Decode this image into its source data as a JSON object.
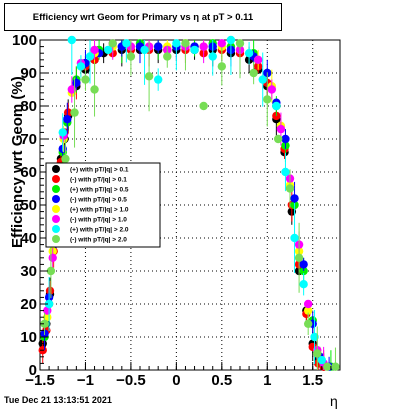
{
  "chart_data": {
    "type": "scatter",
    "title": "Efficiency wrt Geom for Primary vs   η at pT > 0.11",
    "xlabel": "η",
    "ylabel": "Efficiency wrt Geom (%)",
    "xlim": [
      -1.5,
      1.8
    ],
    "ylim": [
      0,
      100
    ],
    "x_ticks": [
      -1.5,
      -1,
      -0.5,
      0,
      0.5,
      1,
      1.5
    ],
    "x_tick_labels": [
      "−1.5",
      "−1",
      "−0.5",
      "0",
      "0.5",
      "1",
      "1.5"
    ],
    "y_ticks": [
      0,
      10,
      20,
      30,
      40,
      50,
      60,
      70,
      80,
      90,
      100
    ],
    "y_tick_labels": [
      "0",
      "10",
      "20",
      "30",
      "40",
      "50",
      "60",
      "70",
      "80",
      "90",
      "100"
    ],
    "grid": true,
    "legend_position": "middle-left",
    "series": [
      {
        "name": "(+) with pT/|q| > 0.1",
        "color": "#000000",
        "values": [
          [
            -1.47,
            8
          ],
          [
            -1.43,
            14
          ],
          [
            -1.39,
            23
          ],
          [
            -1.35,
            38
          ],
          [
            -1.31,
            52
          ],
          [
            -1.27,
            64
          ],
          [
            -1.23,
            70
          ],
          [
            -1.19,
            77
          ],
          [
            -1.1,
            86
          ],
          [
            -1.0,
            91
          ],
          [
            -0.9,
            94
          ],
          [
            -0.8,
            96
          ],
          [
            -0.6,
            97
          ],
          [
            -0.4,
            97
          ],
          [
            -0.2,
            97
          ],
          [
            0.0,
            97
          ],
          [
            0.2,
            97
          ],
          [
            0.4,
            97
          ],
          [
            0.6,
            96
          ],
          [
            0.8,
            94
          ],
          [
            0.9,
            91
          ],
          [
            1.0,
            86
          ],
          [
            1.1,
            76
          ],
          [
            1.19,
            66
          ],
          [
            1.27,
            48
          ],
          [
            1.35,
            30
          ],
          [
            1.43,
            18
          ],
          [
            1.5,
            8
          ],
          [
            1.56,
            3
          ],
          [
            1.62,
            1
          ]
        ]
      },
      {
        "name": "(-) with pT/|q| > 0.1",
        "color": "#ff0000",
        "values": [
          [
            -1.47,
            6
          ],
          [
            -1.43,
            12
          ],
          [
            -1.39,
            24
          ],
          [
            -1.35,
            36
          ],
          [
            -1.31,
            50
          ],
          [
            -1.27,
            63
          ],
          [
            -1.23,
            72
          ],
          [
            -1.19,
            78
          ],
          [
            -1.1,
            87
          ],
          [
            -1.0,
            92
          ],
          [
            -0.9,
            94
          ],
          [
            -0.7,
            96
          ],
          [
            -0.5,
            97
          ],
          [
            -0.3,
            97
          ],
          [
            -0.1,
            97
          ],
          [
            0.1,
            97
          ],
          [
            0.3,
            96
          ],
          [
            0.5,
            97
          ],
          [
            0.7,
            96
          ],
          [
            0.9,
            92
          ],
          [
            1.0,
            87
          ],
          [
            1.1,
            77
          ],
          [
            1.19,
            67
          ],
          [
            1.27,
            50
          ],
          [
            1.35,
            32
          ],
          [
            1.43,
            17
          ],
          [
            1.5,
            7
          ],
          [
            1.56,
            2
          ],
          [
            1.62,
            1
          ]
        ]
      },
      {
        "name": "(+) with pT/|q| > 0.5",
        "color": "#00ee00",
        "values": [
          [
            -1.45,
            10
          ],
          [
            -1.4,
            20
          ],
          [
            -1.35,
            40
          ],
          [
            -1.3,
            55
          ],
          [
            -1.25,
            66
          ],
          [
            -1.2,
            75
          ],
          [
            -1.1,
            88
          ],
          [
            -1.0,
            93
          ],
          [
            -0.85,
            97
          ],
          [
            -0.6,
            98
          ],
          [
            -0.4,
            99
          ],
          [
            -0.2,
            98
          ],
          [
            0.0,
            98
          ],
          [
            0.2,
            98
          ],
          [
            0.4,
            99
          ],
          [
            0.6,
            98
          ],
          [
            0.85,
            96
          ],
          [
            1.0,
            90
          ],
          [
            1.1,
            80
          ],
          [
            1.2,
            68
          ],
          [
            1.3,
            50
          ],
          [
            1.4,
            30
          ],
          [
            1.5,
            15
          ],
          [
            1.58,
            4
          ],
          [
            1.7,
            1
          ]
        ]
      },
      {
        "name": "(-) with pT/|q| > 0.5",
        "color": "#0000ff",
        "values": [
          [
            -1.45,
            11
          ],
          [
            -1.4,
            22
          ],
          [
            -1.35,
            38
          ],
          [
            -1.3,
            56
          ],
          [
            -1.25,
            67
          ],
          [
            -1.2,
            76
          ],
          [
            -1.1,
            87
          ],
          [
            -1.0,
            93
          ],
          [
            -0.85,
            96
          ],
          [
            -0.6,
            98
          ],
          [
            -0.4,
            98
          ],
          [
            -0.2,
            98
          ],
          [
            0.0,
            98
          ],
          [
            0.2,
            98
          ],
          [
            0.4,
            98
          ],
          [
            0.6,
            97
          ],
          [
            0.85,
            95
          ],
          [
            1.0,
            90
          ],
          [
            1.1,
            81
          ],
          [
            1.2,
            70
          ],
          [
            1.3,
            52
          ],
          [
            1.4,
            32
          ],
          [
            1.5,
            14
          ],
          [
            1.58,
            4
          ],
          [
            1.68,
            1
          ]
        ]
      },
      {
        "name": "(+) with pT/|q| > 1.0",
        "color": "#ffff00",
        "values": [
          [
            -1.42,
            16
          ],
          [
            -1.36,
            36
          ],
          [
            -1.3,
            58
          ],
          [
            -1.24,
            70
          ],
          [
            -1.15,
            84
          ],
          [
            -1.05,
            92
          ],
          [
            -0.9,
            96
          ],
          [
            -0.7,
            98
          ],
          [
            -0.5,
            98
          ],
          [
            -0.3,
            98
          ],
          [
            -0.1,
            98
          ],
          [
            0.1,
            99
          ],
          [
            0.3,
            98
          ],
          [
            0.5,
            98
          ],
          [
            0.7,
            97
          ],
          [
            0.9,
            94
          ],
          [
            1.05,
            86
          ],
          [
            1.15,
            74
          ],
          [
            1.25,
            56
          ],
          [
            1.35,
            36
          ],
          [
            1.45,
            18
          ],
          [
            1.55,
            6
          ]
        ]
      },
      {
        "name": "(-) with pT/|q| > 1.0",
        "color": "#ff00ff",
        "values": [
          [
            -1.42,
            18
          ],
          [
            -1.36,
            34
          ],
          [
            -1.3,
            57
          ],
          [
            -1.24,
            71
          ],
          [
            -1.15,
            85
          ],
          [
            -1.05,
            93
          ],
          [
            -0.9,
            97
          ],
          [
            -0.7,
            99
          ],
          [
            -0.5,
            98
          ],
          [
            -0.3,
            98
          ],
          [
            -0.1,
            97
          ],
          [
            0.1,
            98
          ],
          [
            0.3,
            98
          ],
          [
            0.5,
            99
          ],
          [
            0.7,
            97
          ],
          [
            0.9,
            94
          ],
          [
            1.05,
            85
          ],
          [
            1.15,
            73
          ],
          [
            1.25,
            58
          ],
          [
            1.35,
            38
          ],
          [
            1.45,
            20
          ],
          [
            1.55,
            6
          ],
          [
            1.62,
            2
          ]
        ]
      },
      {
        "name": "(+) with pT/|q| > 2.0",
        "color": "#00ffff",
        "values": [
          [
            -1.4,
            20
          ],
          [
            -1.33,
            46
          ],
          [
            -1.25,
            72
          ],
          [
            -1.15,
            100
          ],
          [
            -1.05,
            92
          ],
          [
            -0.95,
            95
          ],
          [
            -0.75,
            97
          ],
          [
            -0.55,
            99
          ],
          [
            -0.35,
            97
          ],
          [
            -0.2,
            88
          ],
          [
            0.0,
            99
          ],
          [
            0.2,
            97
          ],
          [
            0.4,
            95
          ],
          [
            0.6,
            100
          ],
          [
            0.8,
            96
          ],
          [
            0.95,
            88
          ],
          [
            1.1,
            80
          ],
          [
            1.2,
            60
          ],
          [
            1.3,
            40
          ],
          [
            1.4,
            26
          ],
          [
            1.52,
            10
          ],
          [
            1.6,
            3
          ]
        ]
      },
      {
        "name": "(-) with pT/|q| > 2.0",
        "color": "#77dd55",
        "values": [
          [
            -1.45,
            14
          ],
          [
            -1.38,
            30
          ],
          [
            -1.3,
            52
          ],
          [
            -1.22,
            64
          ],
          [
            -1.12,
            78
          ],
          [
            -1.0,
            88
          ],
          [
            -0.9,
            85
          ],
          [
            -0.7,
            99
          ],
          [
            -0.5,
            95
          ],
          [
            -0.3,
            89
          ],
          [
            -0.1,
            95
          ],
          [
            0.1,
            99
          ],
          [
            0.3,
            80
          ],
          [
            0.5,
            92
          ],
          [
            0.7,
            99
          ],
          [
            0.85,
            90
          ],
          [
            1.0,
            82
          ],
          [
            1.12,
            70
          ],
          [
            1.25,
            55
          ],
          [
            1.35,
            34
          ],
          [
            1.45,
            14
          ],
          [
            1.55,
            5
          ],
          [
            1.66,
            1
          ],
          [
            1.75,
            1
          ]
        ]
      }
    ]
  },
  "footer": {
    "timestamp": "Tue Dec 21 13:13:51 2021"
  }
}
